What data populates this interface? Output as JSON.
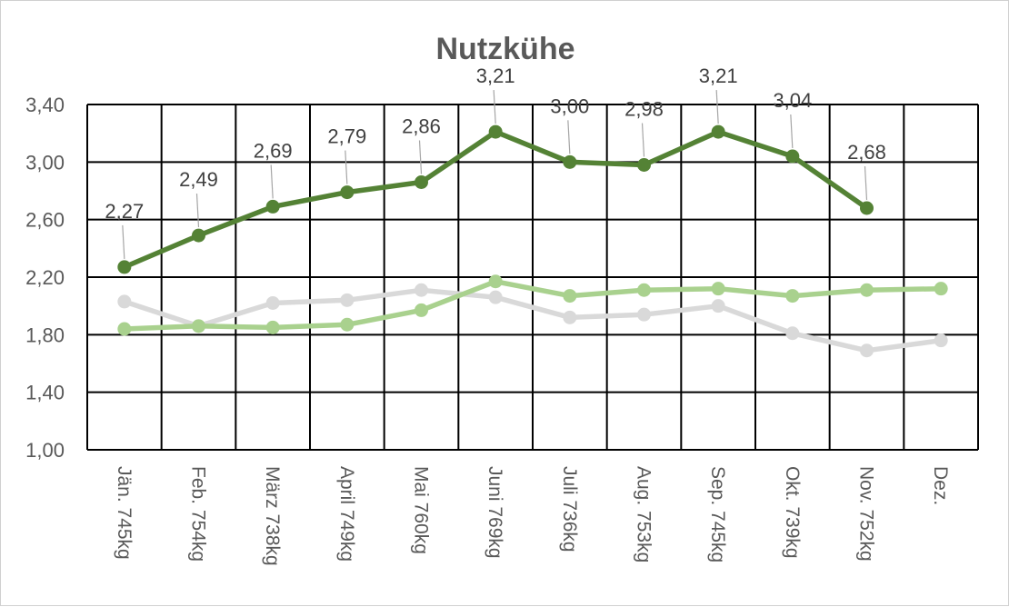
{
  "chart_data": {
    "type": "line",
    "title": "Nutzkühe",
    "xlabel": "",
    "ylabel": "",
    "ylim": [
      1.0,
      3.4
    ],
    "yticks": [
      "1,00",
      "1,40",
      "1,80",
      "2,20",
      "2,60",
      "3,00",
      "3,40"
    ],
    "grid": true,
    "legend": "none",
    "categories": [
      {
        "month": "Jän.",
        "weight": "745kg"
      },
      {
        "month": "Feb.",
        "weight": "754kg"
      },
      {
        "month": "März",
        "weight": "738kg"
      },
      {
        "month": "April",
        "weight": "749kg"
      },
      {
        "month": "Mai",
        "weight": "760kg"
      },
      {
        "month": "Juni",
        "weight": "769kg"
      },
      {
        "month": "Juli",
        "weight": "736kg"
      },
      {
        "month": "Aug.",
        "weight": "753kg"
      },
      {
        "month": "Sep.",
        "weight": "745kg"
      },
      {
        "month": "Okt.",
        "weight": "739kg"
      },
      {
        "month": "Nov.",
        "weight": "752kg"
      },
      {
        "month": "Dez.",
        "weight": ""
      }
    ],
    "series": [
      {
        "color": "#d9d9d9",
        "values": [
          2.03,
          1.86,
          2.02,
          2.04,
          2.11,
          2.06,
          1.92,
          1.94,
          2.0,
          1.81,
          1.69,
          1.76
        ],
        "labels": null
      },
      {
        "color": "#a9d18e",
        "values": [
          1.84,
          1.86,
          1.85,
          1.87,
          1.97,
          2.17,
          2.07,
          2.11,
          2.12,
          2.07,
          2.11,
          2.12
        ],
        "labels": null
      },
      {
        "color": "#548235",
        "values": [
          2.27,
          2.49,
          2.69,
          2.79,
          2.86,
          3.21,
          3.0,
          2.98,
          3.21,
          3.04,
          2.68,
          null
        ],
        "labels": [
          "2,27",
          "2,49",
          "2,69",
          "2,79",
          "2,86",
          "3,21",
          "3,00",
          "2,98",
          "3,21",
          "3,04",
          "2,68",
          null
        ]
      }
    ]
  }
}
